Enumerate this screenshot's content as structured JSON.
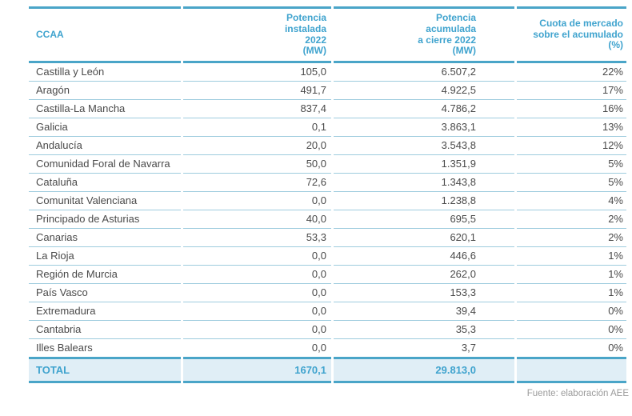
{
  "chart_data": {
    "type": "table",
    "columns": [
      "CCAA",
      "Potencia instalada 2022 (MW)",
      "Potencia acumulada a cierre 2022 (MW)",
      "Cuota de mercado sobre el acumulado (%)"
    ],
    "header_lines": [
      "CCAA",
      "Potencia\ninstalada\n2022\n(MW)",
      "Potencia\nacumulada\na cierre 2022\n(MW)",
      "Cuota de mercado\nsobre el acumulado\n(%)"
    ],
    "rows": [
      [
        "Castilla y León",
        "105,0",
        "6.507,2",
        "22%"
      ],
      [
        "Aragón",
        "491,7",
        "4.922,5",
        "17%"
      ],
      [
        "Castilla-La Mancha",
        "837,4",
        "4.786,2",
        "16%"
      ],
      [
        "Galicia",
        "0,1",
        "3.863,1",
        "13%"
      ],
      [
        "Andalucía",
        "20,0",
        "3.543,8",
        "12%"
      ],
      [
        "Comunidad Foral de Navarra",
        "50,0",
        "1.351,9",
        "5%"
      ],
      [
        "Cataluña",
        "72,6",
        "1.343,8",
        "5%"
      ],
      [
        "Comunitat Valenciana",
        "0,0",
        "1.238,8",
        "4%"
      ],
      [
        "Principado de Asturias",
        "40,0",
        "695,5",
        "2%"
      ],
      [
        "Canarias",
        "53,3",
        "620,1",
        "2%"
      ],
      [
        "La Rioja",
        "0,0",
        "446,6",
        "1%"
      ],
      [
        "Región de Murcia",
        "0,0",
        "262,0",
        "1%"
      ],
      [
        "País Vasco",
        "0,0",
        "153,3",
        "1%"
      ],
      [
        "Extremadura",
        "0,0",
        "39,4",
        "0%"
      ],
      [
        "Cantabria",
        "0,0",
        "35,3",
        "0%"
      ],
      [
        "Illes Balears",
        "0,0",
        "3,7",
        "0%"
      ]
    ],
    "total": [
      "TOTAL",
      "1670,1",
      "29.813,0",
      ""
    ]
  },
  "footer": {
    "source": "Fuente: elaboración AEE"
  },
  "colors": {
    "accent_blue": "#3FA3CE",
    "border_teal": "#4AA5C8",
    "row_line": "#9ECBDE",
    "total_bg": "#E0EEF6",
    "body_text": "#4A4A4A",
    "footer_text": "#9B9B9B"
  }
}
